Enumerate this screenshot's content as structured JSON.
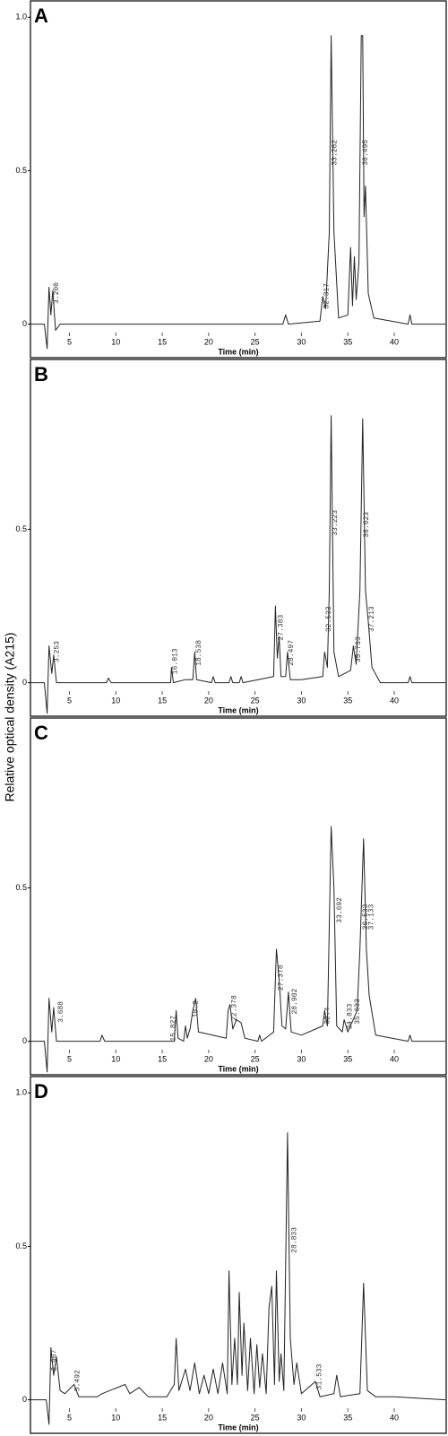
{
  "chart_data": [
    {
      "type": "line",
      "title": "A",
      "ylabel": "Relative optical density (A215)",
      "xlabel": "Time (min)",
      "xlim": [
        0.8,
        45.6
      ],
      "ylim": [
        -0.08,
        1.03
      ],
      "xticks": [
        5,
        10,
        15,
        20,
        25,
        30,
        35,
        40
      ],
      "yticks": [
        0,
        0.5,
        {
          "value": 1,
          "label": "1.0"
        }
      ],
      "x": [
        0.8,
        2.3,
        2.6,
        2.8,
        3.0,
        3.2,
        3.5,
        4,
        28,
        28.3,
        28.6,
        32,
        32.3,
        32.6,
        33,
        33.2,
        33.5,
        34,
        35,
        35.3,
        35.5,
        35.7,
        35.9,
        36.2,
        36.45,
        36.6,
        36.75,
        36.9,
        37.2,
        37.8,
        41.5,
        41.7,
        41.9,
        45.5
      ],
      "series": [
        {
          "color": "#222222",
          "values": [
            0,
            0,
            -0.08,
            0.12,
            0.03,
            0.11,
            -0.02,
            0,
            0,
            0.03,
            0,
            0.01,
            0.09,
            0.05,
            0.3,
            0.94,
            0.3,
            0.02,
            0.03,
            0.25,
            0.06,
            0.22,
            0.08,
            0.2,
            0.94,
            0.94,
            0.35,
            0.45,
            0.1,
            0.02,
            0,
            0.03,
            0,
            0
          ]
        }
      ],
      "annotations": [
        "3.200",
        "32.317",
        "33.202",
        "36.495"
      ]
    },
    {
      "type": "line",
      "title": "B",
      "xlabel": "Time (min)",
      "xlim": [
        0.8,
        45.6
      ],
      "ylim": [
        -0.08,
        1.03
      ],
      "xticks": [
        5,
        10,
        15,
        20,
        25,
        30,
        35,
        40
      ],
      "yticks": [
        0,
        0.5
      ],
      "x": [
        0.8,
        2.3,
        2.6,
        2.8,
        3.1,
        3.3,
        3.6,
        9,
        9.2,
        9.5,
        15.9,
        16.0,
        16.2,
        17.5,
        18.3,
        18.5,
        18.7,
        20.3,
        20.5,
        20.7,
        22.2,
        22.4,
        22.6,
        23.3,
        23.5,
        23.7,
        27,
        27.2,
        27.4,
        27.6,
        27.8,
        28.3,
        28.5,
        28.8,
        30,
        32.3,
        32.5,
        32.8,
        33.0,
        33.2,
        33.5,
        34,
        35.3,
        35.6,
        35.9,
        36.3,
        36.6,
        36.9,
        37.2,
        37.6,
        38.5,
        41.5,
        41.7,
        41.9,
        45.5
      ],
      "series": [
        {
          "color": "#222222",
          "values": [
            0,
            0,
            -0.1,
            0.12,
            0.03,
            0.09,
            0,
            0,
            0.015,
            0,
            0,
            0.05,
            0,
            0.01,
            0.01,
            0.1,
            0.01,
            0,
            0.02,
            0,
            0,
            0.02,
            0,
            0,
            0.02,
            0,
            0.02,
            0.25,
            0.08,
            0.15,
            0.02,
            0.02,
            0.1,
            0.01,
            0.01,
            0.02,
            0.1,
            0.05,
            0.3,
            0.87,
            0.1,
            0.02,
            0.04,
            0.12,
            0.06,
            0.3,
            0.86,
            0.3,
            0.2,
            0.05,
            0,
            0,
            0.02,
            0,
            0
          ]
        }
      ],
      "annotations": [
        "3.253",
        "16.013",
        "18.538",
        "27.383",
        "28.497",
        "32.533",
        "33.223",
        "35.733",
        "36.623",
        "37.213"
      ]
    },
    {
      "type": "line",
      "title": "C",
      "xlabel": "Time (min)",
      "xlim": [
        0.8,
        45.6
      ],
      "ylim": [
        -0.08,
        1.03
      ],
      "xticks": [
        5,
        10,
        15,
        20,
        25,
        30,
        35,
        40
      ],
      "yticks": [
        0,
        0.5
      ],
      "x": [
        0.8,
        2.3,
        2.6,
        2.8,
        3.1,
        3.3,
        3.6,
        8.3,
        8.5,
        8.8,
        16.3,
        16.5,
        16.7,
        17.3,
        17.5,
        17.7,
        18.0,
        18.3,
        18.6,
        18.9,
        21.9,
        22.1,
        22.3,
        22.6,
        23.0,
        23.5,
        23.9,
        25.3,
        25.5,
        25.7,
        27.0,
        27.3,
        27.6,
        27.9,
        28.3,
        28.6,
        28.9,
        30,
        32.3,
        32.5,
        32.8,
        33.2,
        33.5,
        33.8,
        34.4,
        34.6,
        35.0,
        36.0,
        36.3,
        36.7,
        37.0,
        37.3,
        38.0,
        41.5,
        41.7,
        41.9,
        45.5
      ],
      "series": [
        {
          "color": "#222222",
          "values": [
            0,
            0,
            -0.1,
            0.14,
            0.03,
            0.11,
            0,
            0,
            0.02,
            0,
            0,
            0.1,
            0.01,
            0,
            0.05,
            0.01,
            0.04,
            0.1,
            0.14,
            0.03,
            0.01,
            0.1,
            0.12,
            0.04,
            0.07,
            0.06,
            0.01,
            0,
            0.02,
            0,
            0.03,
            0.3,
            0.2,
            0.05,
            0.04,
            0.16,
            0.03,
            0.02,
            0.05,
            0.1,
            0.05,
            0.7,
            0.5,
            0.05,
            0.03,
            0.07,
            0.03,
            0.1,
            0.3,
            0.66,
            0.3,
            0.15,
            0.02,
            0,
            0.02,
            0,
            0
          ]
        }
      ],
      "annotations": [
        "3.688",
        "15.827",
        "18.2",
        "22.378",
        "27.378",
        "28.902",
        "32.4",
        "33.692",
        "34.833",
        "35.633",
        "36.533",
        "37.133"
      ]
    },
    {
      "type": "line",
      "title": "D",
      "xlabel": "Time (min)",
      "xlim": [
        0.8,
        45.6
      ],
      "ylim": [
        -0.08,
        1.03
      ],
      "xticks": [
        5,
        10,
        15,
        20,
        25,
        30,
        35,
        40
      ],
      "yticks": [
        0,
        0.5,
        {
          "value": 1,
          "label": "1.0"
        }
      ],
      "x": [
        0.8,
        2.5,
        2.8,
        3.0,
        3.3,
        3.6,
        4.0,
        4.5,
        5.5,
        6,
        8,
        8.5,
        11,
        11.5,
        12.5,
        13.5,
        15.5,
        16.3,
        16.5,
        16.8,
        17.5,
        18,
        18.5,
        19,
        19.5,
        20,
        20.5,
        21,
        21.5,
        22,
        22.2,
        22.5,
        22.8,
        23.1,
        23.3,
        23.6,
        23.8,
        24.2,
        24.5,
        24.9,
        25.2,
        25.5,
        25.8,
        26.2,
        26.5,
        26.8,
        27.1,
        27.3,
        27.6,
        27.8,
        28.1,
        28.5,
        28.8,
        29.2,
        29.5,
        30,
        31.5,
        32,
        33.5,
        33.8,
        34.2,
        36.3,
        36.7,
        37.1,
        38,
        40,
        45.5
      ],
      "series": [
        {
          "color": "#222222",
          "values": [
            0,
            0,
            -0.08,
            0.17,
            0.08,
            0.14,
            0.03,
            0.02,
            0.05,
            0.01,
            0.01,
            0.02,
            0.05,
            0.02,
            0.04,
            0.01,
            0.01,
            0.05,
            0.2,
            0.03,
            0.1,
            0.03,
            0.12,
            0.02,
            0.08,
            0.02,
            0.1,
            0.02,
            0.12,
            0.02,
            0.42,
            0.05,
            0.2,
            0.05,
            0.35,
            0.08,
            0.25,
            0.03,
            0.2,
            0.02,
            0.18,
            0.04,
            0.15,
            0.02,
            0.3,
            0.37,
            0.05,
            0.42,
            0.06,
            0.15,
            0.03,
            0.87,
            0.2,
            0.05,
            0.12,
            0.02,
            0.06,
            0.01,
            0.02,
            0.08,
            0.01,
            0.02,
            0.38,
            0.03,
            0.01,
            0.01,
            0
          ]
        }
      ],
      "annotations": [
        "2.967",
        "5.492",
        "28.833",
        "31.533"
      ]
    }
  ]
}
